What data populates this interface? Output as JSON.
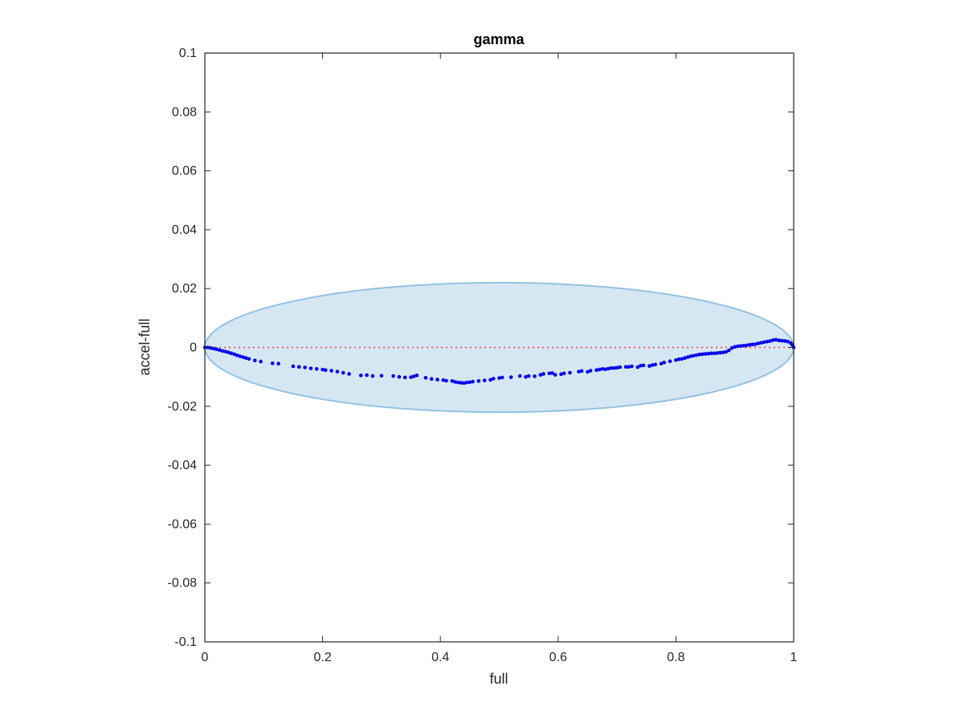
{
  "chart_data": {
    "type": "scatter",
    "title": "gamma",
    "xlabel": "full",
    "ylabel": "accel-full",
    "xlim": [
      0,
      1
    ],
    "ylim": [
      -0.1,
      0.1
    ],
    "xticks": [
      0,
      0.2,
      0.4,
      0.6,
      0.8,
      1
    ],
    "xtick_labels": [
      "0",
      "0.2",
      "0.4",
      "0.6",
      "0.8",
      "1"
    ],
    "yticks": [
      -0.1,
      -0.08,
      -0.06,
      -0.04,
      -0.02,
      0,
      0.02,
      0.04,
      0.06,
      0.08,
      0.1
    ],
    "ytick_labels": [
      "-0.1",
      "-0.08",
      "-0.06",
      "-0.04",
      "-0.02",
      "0",
      "0.02",
      "0.04",
      "0.06",
      "0.08",
      "0.1"
    ],
    "grid": false,
    "reference_line": {
      "y": 0,
      "style": "dotted",
      "color": "#ff3b3b"
    },
    "confidence_ellipse": {
      "center": [
        0.5,
        0
      ],
      "x_semi_axis": 0.5,
      "y_semi_axis": 0.022,
      "fill": "#d6e7f4",
      "stroke": "#93c2e2"
    },
    "series": [
      {
        "color": "#0000ee",
        "points": [
          [
            0.0,
            0.0
          ],
          [
            0.005,
            0.0
          ],
          [
            0.01,
            -0.0002
          ],
          [
            0.015,
            -0.0004
          ],
          [
            0.02,
            -0.0006
          ],
          [
            0.025,
            -0.0009
          ],
          [
            0.03,
            -0.0012
          ],
          [
            0.035,
            -0.0014
          ],
          [
            0.04,
            -0.0017
          ],
          [
            0.045,
            -0.002
          ],
          [
            0.05,
            -0.0023
          ],
          [
            0.055,
            -0.0027
          ],
          [
            0.06,
            -0.003
          ],
          [
            0.065,
            -0.0033
          ],
          [
            0.07,
            -0.0036
          ],
          [
            0.075,
            -0.0039
          ],
          [
            0.085,
            -0.0044
          ],
          [
            0.095,
            -0.0048
          ],
          [
            0.115,
            -0.0054
          ],
          [
            0.125,
            -0.0055
          ],
          [
            0.15,
            -0.0064
          ],
          [
            0.16,
            -0.0066
          ],
          [
            0.17,
            -0.0068
          ],
          [
            0.18,
            -0.0071
          ],
          [
            0.19,
            -0.0073
          ],
          [
            0.2,
            -0.0075
          ],
          [
            0.205,
            -0.0077
          ],
          [
            0.215,
            -0.0079
          ],
          [
            0.225,
            -0.0082
          ],
          [
            0.235,
            -0.0086
          ],
          [
            0.245,
            -0.009
          ],
          [
            0.265,
            -0.0095
          ],
          [
            0.275,
            -0.0094
          ],
          [
            0.285,
            -0.0097
          ],
          [
            0.3,
            -0.0096
          ],
          [
            0.32,
            -0.0097
          ],
          [
            0.33,
            -0.01
          ],
          [
            0.34,
            -0.0102
          ],
          [
            0.35,
            -0.0101
          ],
          [
            0.355,
            -0.0098
          ],
          [
            0.36,
            -0.0095
          ],
          [
            0.375,
            -0.0103
          ],
          [
            0.385,
            -0.0107
          ],
          [
            0.395,
            -0.0109
          ],
          [
            0.405,
            -0.0111
          ],
          [
            0.41,
            -0.0113
          ],
          [
            0.42,
            -0.0114
          ],
          [
            0.425,
            -0.0117
          ],
          [
            0.43,
            -0.0119
          ],
          [
            0.435,
            -0.012
          ],
          [
            0.44,
            -0.0121
          ],
          [
            0.445,
            -0.0119
          ],
          [
            0.45,
            -0.0118
          ],
          [
            0.455,
            -0.0116
          ],
          [
            0.465,
            -0.0114
          ],
          [
            0.475,
            -0.0112
          ],
          [
            0.485,
            -0.011
          ],
          [
            0.49,
            -0.0106
          ],
          [
            0.5,
            -0.0104
          ],
          [
            0.505,
            -0.0102
          ],
          [
            0.52,
            -0.0101
          ],
          [
            0.535,
            -0.0097
          ],
          [
            0.545,
            -0.01
          ],
          [
            0.55,
            -0.0097
          ],
          [
            0.56,
            -0.0098
          ],
          [
            0.57,
            -0.0093
          ],
          [
            0.575,
            -0.009
          ],
          [
            0.585,
            -0.0088
          ],
          [
            0.59,
            -0.0087
          ],
          [
            0.595,
            -0.0093
          ],
          [
            0.605,
            -0.0091
          ],
          [
            0.61,
            -0.0088
          ],
          [
            0.62,
            -0.0086
          ],
          [
            0.635,
            -0.0082
          ],
          [
            0.64,
            -0.008
          ],
          [
            0.65,
            -0.0083
          ],
          [
            0.655,
            -0.0079
          ],
          [
            0.665,
            -0.0077
          ],
          [
            0.67,
            -0.0075
          ],
          [
            0.675,
            -0.0073
          ],
          [
            0.68,
            -0.0074
          ],
          [
            0.685,
            -0.0072
          ],
          [
            0.69,
            -0.007
          ],
          [
            0.695,
            -0.007
          ],
          [
            0.7,
            -0.0069
          ],
          [
            0.705,
            -0.0067
          ],
          [
            0.715,
            -0.0066
          ],
          [
            0.72,
            -0.0066
          ],
          [
            0.725,
            -0.0064
          ],
          [
            0.735,
            -0.0067
          ],
          [
            0.74,
            -0.0062
          ],
          [
            0.745,
            -0.0061
          ],
          [
            0.755,
            -0.0063
          ],
          [
            0.76,
            -0.006
          ],
          [
            0.765,
            -0.0058
          ],
          [
            0.775,
            -0.0055
          ],
          [
            0.78,
            -0.0051
          ],
          [
            0.79,
            -0.0047
          ],
          [
            0.8,
            -0.0043
          ],
          [
            0.805,
            -0.004
          ],
          [
            0.81,
            -0.0039
          ],
          [
            0.815,
            -0.0036
          ],
          [
            0.82,
            -0.0033
          ],
          [
            0.825,
            -0.003
          ],
          [
            0.83,
            -0.0028
          ],
          [
            0.835,
            -0.0026
          ],
          [
            0.84,
            -0.0024
          ],
          [
            0.845,
            -0.0023
          ],
          [
            0.85,
            -0.0022
          ],
          [
            0.855,
            -0.0021
          ],
          [
            0.86,
            -0.002
          ],
          [
            0.865,
            -0.002
          ],
          [
            0.87,
            -0.0019
          ],
          [
            0.875,
            -0.0018
          ],
          [
            0.88,
            -0.0017
          ],
          [
            0.885,
            -0.0015
          ],
          [
            0.89,
            -0.001
          ],
          [
            0.895,
            -0.0002
          ],
          [
            0.9,
            0.0002
          ],
          [
            0.905,
            0.0004
          ],
          [
            0.91,
            0.0005
          ],
          [
            0.915,
            0.0006
          ],
          [
            0.92,
            0.0007
          ],
          [
            0.925,
            0.0009
          ],
          [
            0.93,
            0.001
          ],
          [
            0.935,
            0.0011
          ],
          [
            0.94,
            0.0014
          ],
          [
            0.945,
            0.0016
          ],
          [
            0.95,
            0.0018
          ],
          [
            0.955,
            0.002
          ],
          [
            0.96,
            0.0022
          ],
          [
            0.965,
            0.0025
          ],
          [
            0.97,
            0.0026
          ],
          [
            0.975,
            0.0024
          ],
          [
            0.98,
            0.0023
          ],
          [
            0.985,
            0.0022
          ],
          [
            0.99,
            0.002
          ],
          [
            0.995,
            0.0015
          ],
          [
            0.998,
            0.0008
          ],
          [
            1.0,
            0.0
          ]
        ]
      }
    ]
  }
}
